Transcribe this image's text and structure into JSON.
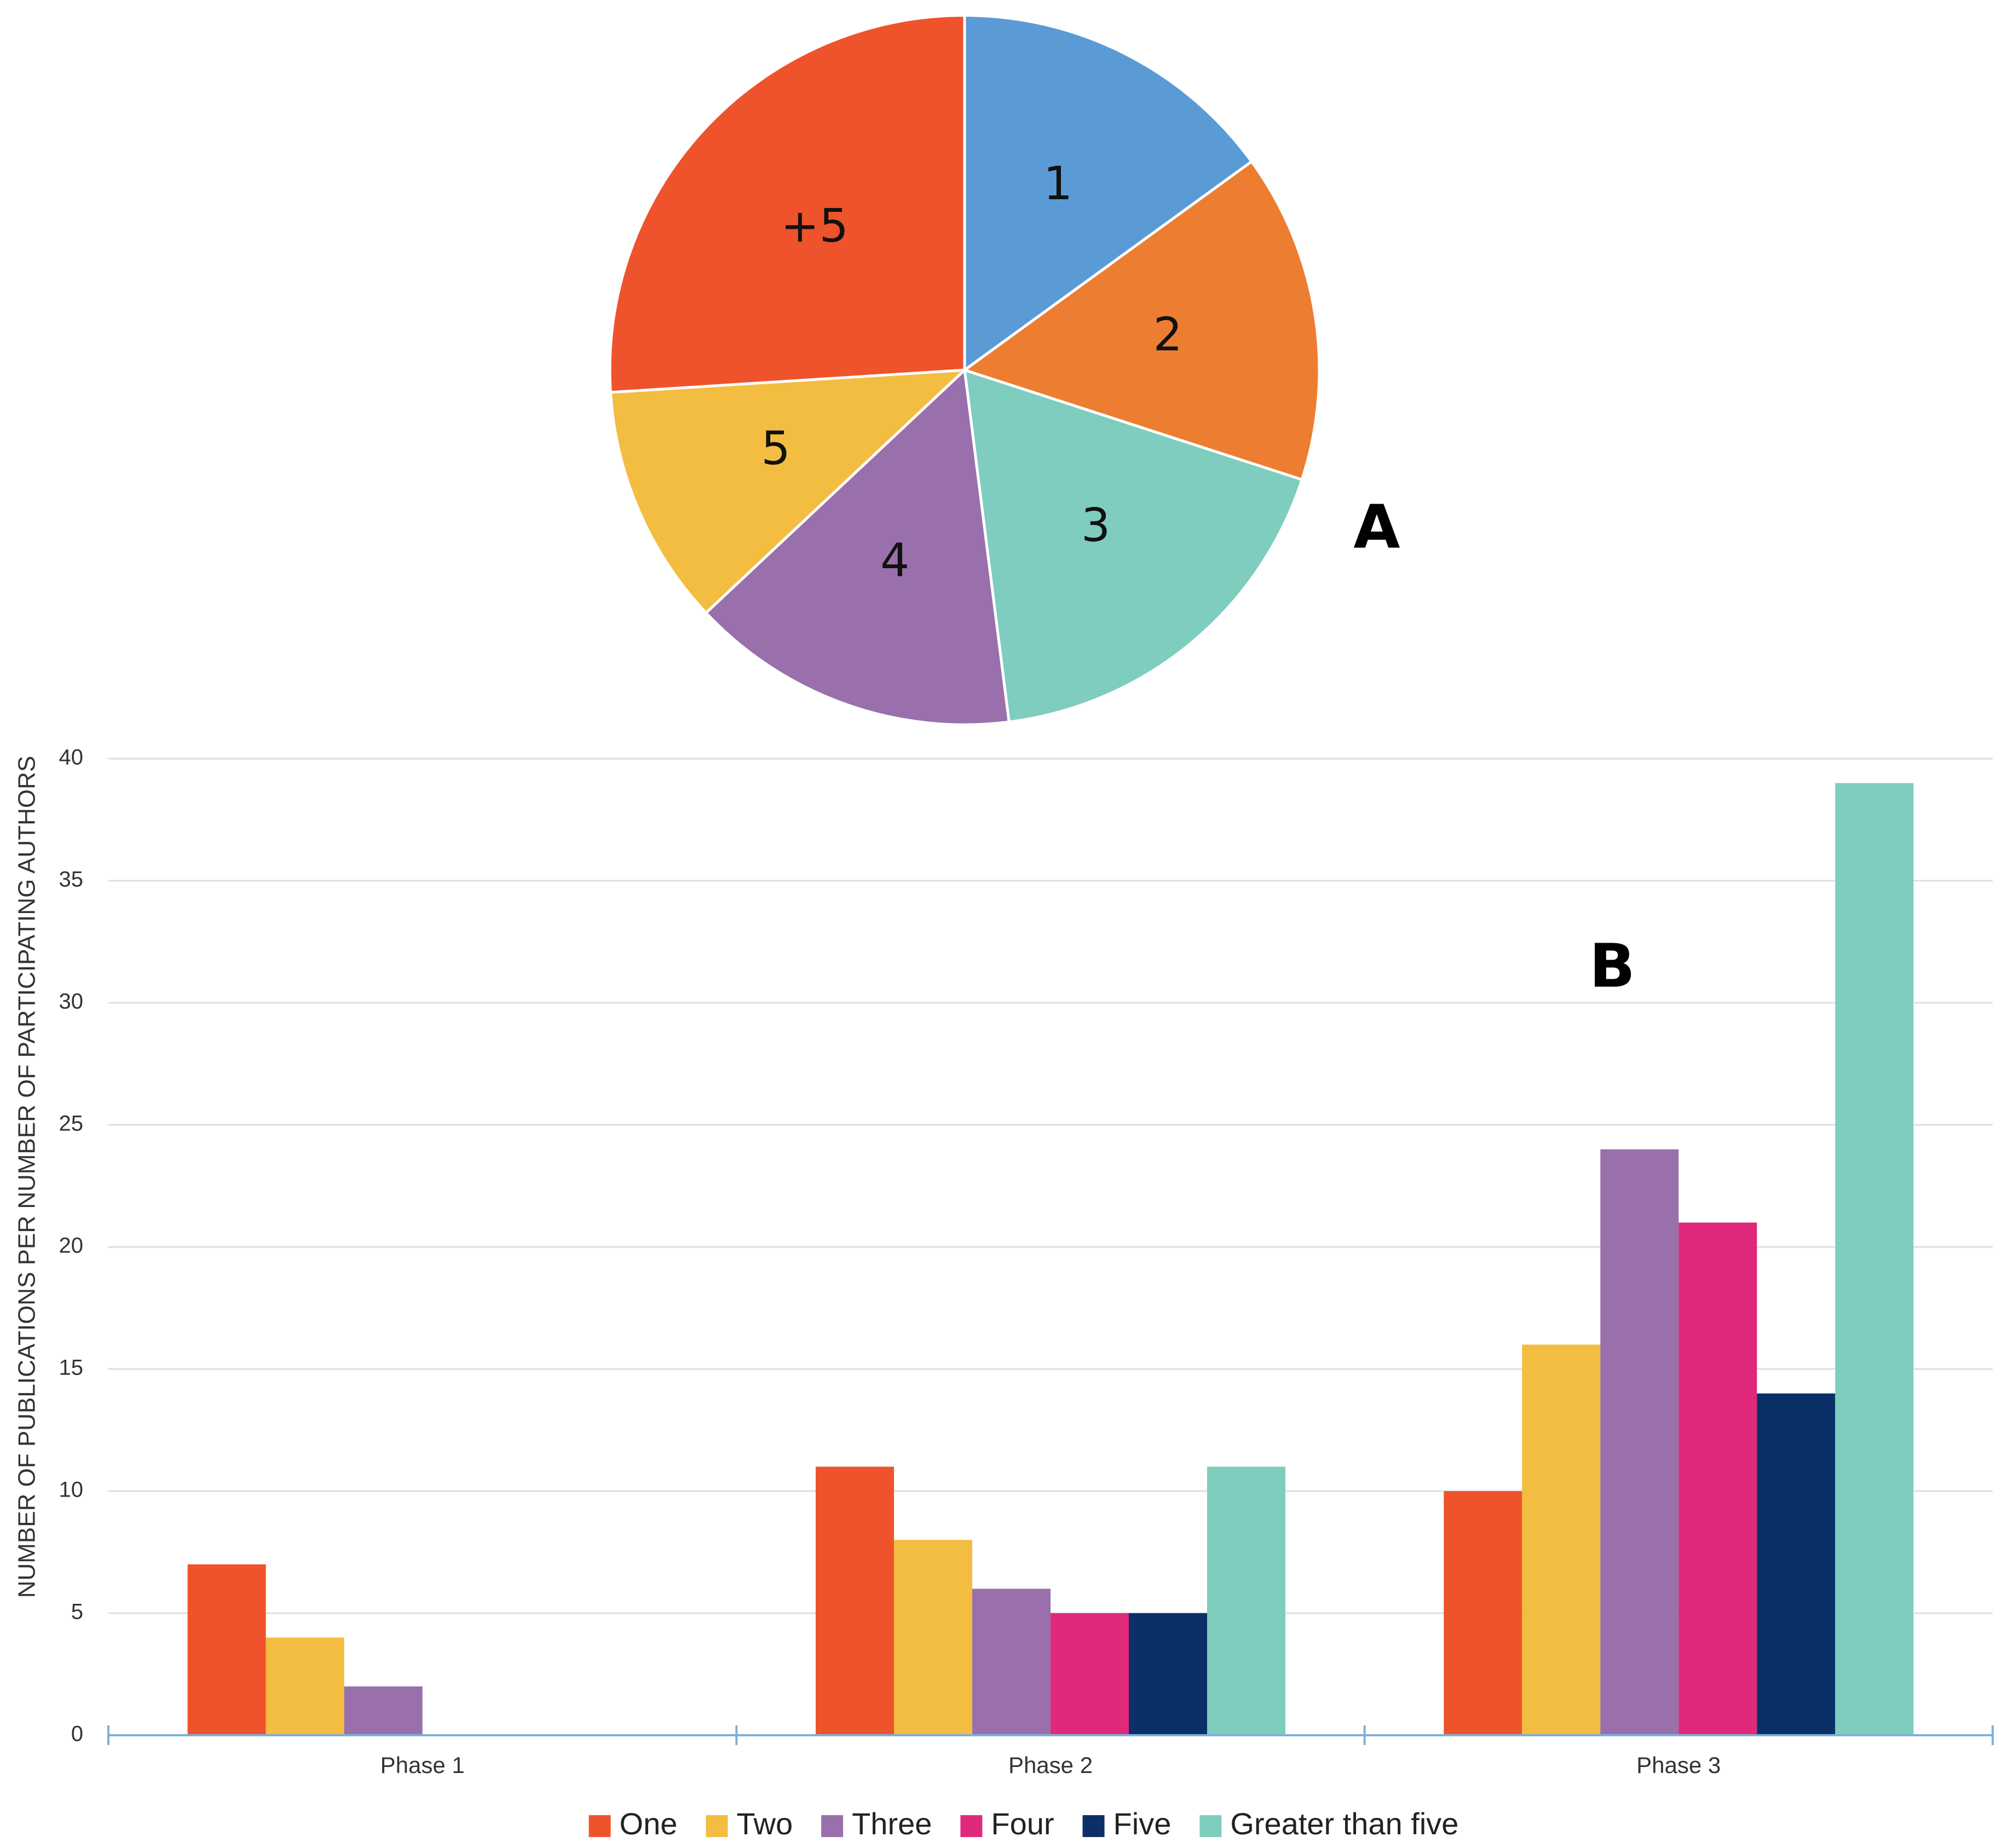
{
  "panels": {
    "a_label": "A",
    "b_label": "B"
  },
  "chart_data": [
    {
      "type": "pie",
      "panel": "A",
      "title": "",
      "start_angle_deg": 0,
      "direction": "clockwise",
      "slices": [
        {
          "label": "1",
          "value": 15,
          "color": "#5B9BD5"
        },
        {
          "label": "2",
          "value": 15,
          "color": "#ED7D31"
        },
        {
          "label": "3",
          "value": 18,
          "color": "#7ECDBE"
        },
        {
          "label": "4",
          "value": 15,
          "color": "#9970AB"
        },
        {
          "label": "5",
          "value": 11,
          "color": "#F3BD41"
        },
        {
          "label": "+5",
          "value": 26,
          "color": "#EF532B"
        }
      ]
    },
    {
      "type": "bar",
      "panel": "B",
      "title": "",
      "xlabel": "",
      "ylabel": "NUMBER OF PUBLICATIONS PER NUMBER OF PARTICIPATING AUTHORS",
      "ylim": [
        0,
        40
      ],
      "yticks": [
        0,
        5,
        10,
        15,
        20,
        25,
        30,
        35,
        40
      ],
      "grid": true,
      "legend_position": "bottom-center",
      "categories": [
        "Phase 1",
        "Phase 2",
        "Phase 3"
      ],
      "series": [
        {
          "name": "One",
          "color": "#EF532B",
          "values": [
            7,
            11,
            10
          ]
        },
        {
          "name": "Two",
          "color": "#F3BD41",
          "values": [
            4,
            8,
            16
          ]
        },
        {
          "name": "Three",
          "color": "#9970AB",
          "values": [
            2,
            6,
            24
          ]
        },
        {
          "name": "Four",
          "color": "#E0297A",
          "values": [
            0,
            5,
            21
          ]
        },
        {
          "name": "Five",
          "color": "#0B3068",
          "values": [
            0,
            5,
            14
          ]
        },
        {
          "name": "Greater than five",
          "color": "#7ECDBE",
          "values": [
            0,
            11,
            39
          ]
        }
      ]
    }
  ]
}
